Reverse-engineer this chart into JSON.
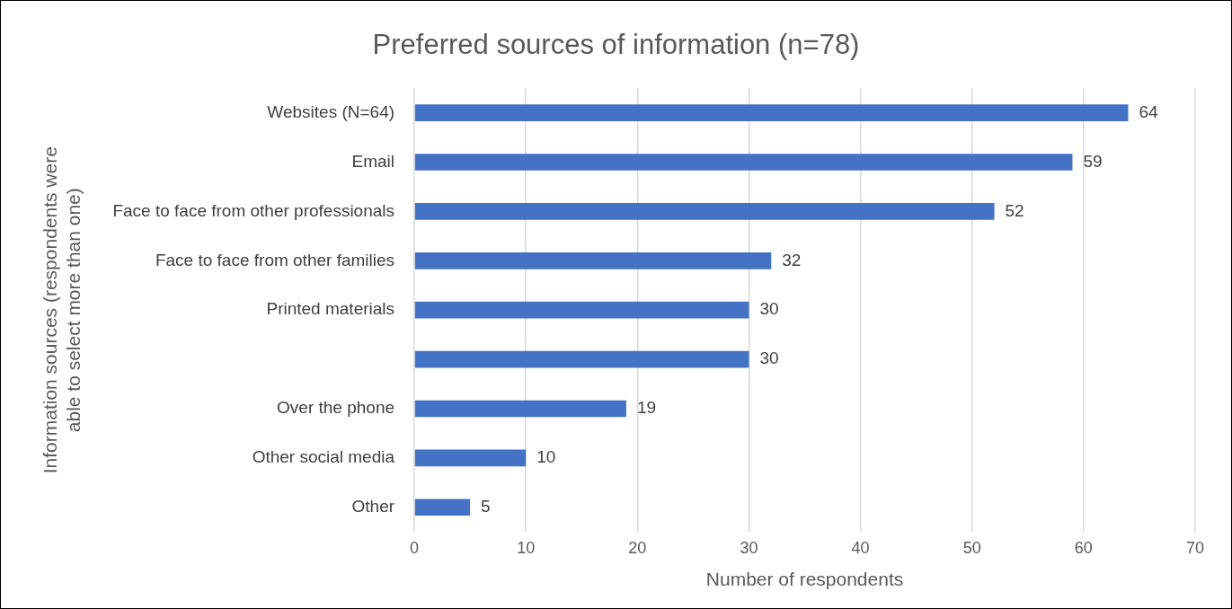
{
  "chart_data": {
    "type": "bar",
    "orientation": "horizontal",
    "title": "Preferred sources of information (n=78)",
    "xlabel": "Number of respondents",
    "ylabel": "Information sources (respondents were able to select more than one)",
    "categories": [
      "Websites (N=64)",
      "Email",
      "Face to face from other professionals",
      "Face to face from other families",
      "Printed materials",
      null,
      "Over the phone",
      "Other social media",
      "Other"
    ],
    "values": [
      64,
      59,
      52,
      32,
      30,
      30,
      19,
      10,
      5
    ],
    "color": "#4472c4",
    "xlim": [
      0,
      70
    ],
    "xticks": [
      0,
      10,
      20,
      30,
      40,
      50,
      60,
      70
    ],
    "grid": "x",
    "data_labels": true,
    "legend": false
  }
}
